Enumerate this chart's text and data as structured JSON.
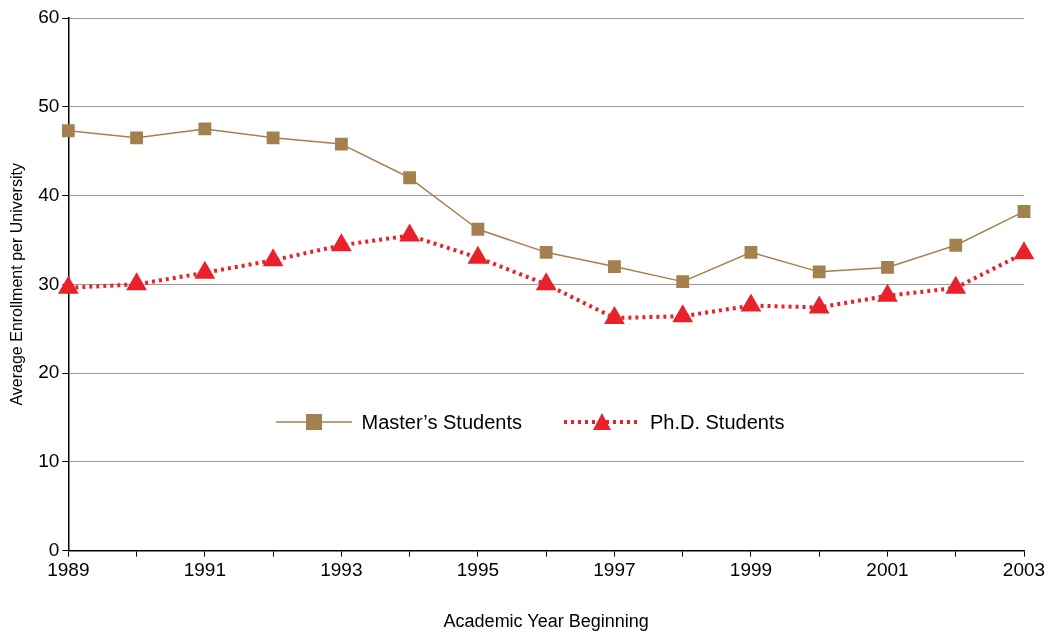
{
  "chart_data": {
    "type": "line",
    "xlabel": "Academic Year Beginning",
    "ylabel": "Average Enrollment per University",
    "x": [
      1989,
      1990,
      1991,
      1992,
      1993,
      1994,
      1995,
      1996,
      1997,
      1998,
      1999,
      2000,
      2001,
      2002,
      2003
    ],
    "series": [
      {
        "name": "Master’s Students",
        "color": "#a5804f",
        "marker": "square",
        "line_style": "solid",
        "values": [
          47.3,
          46.5,
          47.5,
          46.5,
          45.8,
          42.0,
          36.2,
          33.6,
          32.0,
          30.3,
          33.6,
          31.4,
          31.9,
          34.4,
          38.2
        ]
      },
      {
        "name": "Ph.D. Students",
        "color": "#e8212a",
        "marker": "triangle",
        "line_style": "dotted",
        "values": [
          29.6,
          30.0,
          31.3,
          32.7,
          34.4,
          35.5,
          33.0,
          30.0,
          26.2,
          26.4,
          27.6,
          27.4,
          28.7,
          29.6,
          33.5
        ]
      }
    ],
    "xlim": [
      1989,
      2003
    ],
    "xticks": [
      1989,
      {
        "value": 1990,
        "label": null
      },
      1991,
      {
        "value": 1992,
        "label": null
      },
      1993,
      {
        "value": 1994,
        "label": null
      },
      1995,
      {
        "value": 1996,
        "label": null
      },
      1997,
      {
        "value": 1998,
        "label": null
      },
      1999,
      {
        "value": 2000,
        "label": null
      },
      2001,
      {
        "value": 2002,
        "label": null
      },
      2003
    ],
    "ylim": [
      0,
      60
    ],
    "yticks": [
      0,
      10,
      20,
      30,
      40,
      50,
      60
    ],
    "grid": "y",
    "legend": "bottom"
  }
}
